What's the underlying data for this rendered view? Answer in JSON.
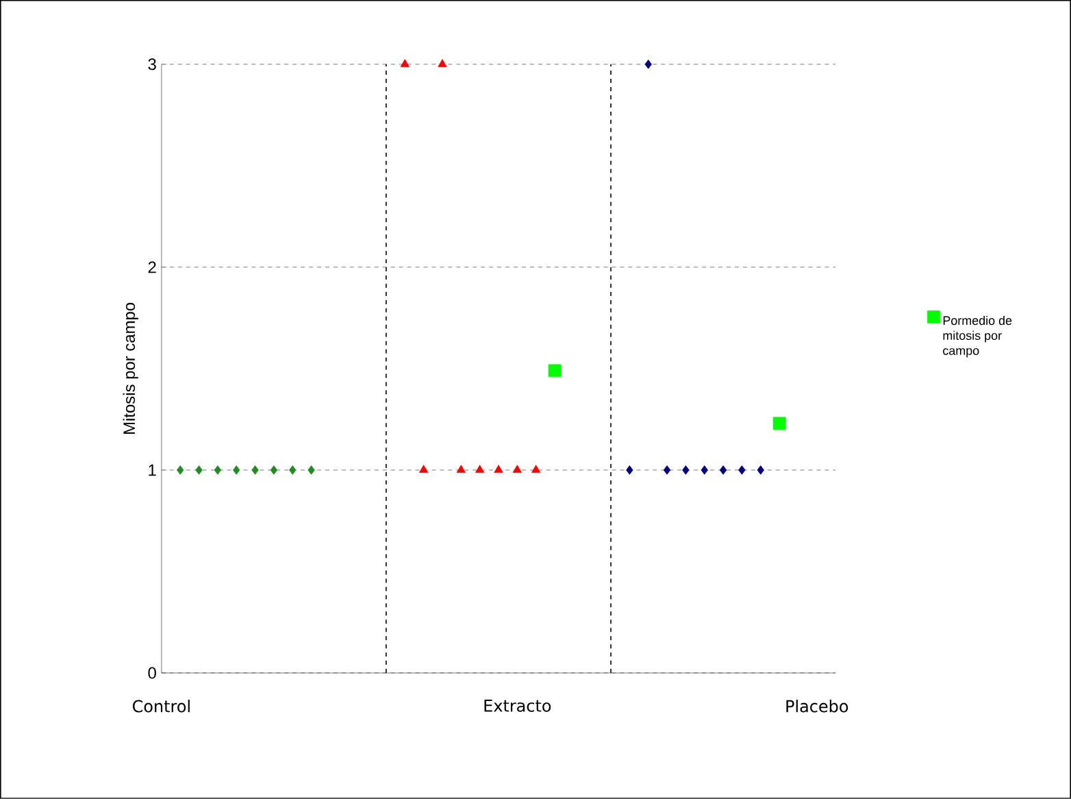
{
  "chart_data": {
    "type": "scatter",
    "ylabel": "Mitosis por campo",
    "categories": [
      "Control",
      null,
      null,
      null,
      null,
      null,
      null,
      null,
      null,
      null,
      null,
      null,
      null,
      null,
      null,
      null,
      null,
      null,
      null,
      "Extracto",
      null,
      null,
      null,
      null,
      null,
      null,
      null,
      null,
      null,
      null,
      null,
      null,
      null,
      null,
      null,
      "Placebo"
    ],
    "ylim": [
      0,
      3
    ],
    "yticks": [
      0,
      1,
      2,
      3
    ],
    "grid": true,
    "legend": "right",
    "series": [
      {
        "color": "#228b22",
        "marker": "diamond",
        "values": [
          null,
          1,
          1,
          1,
          1,
          1,
          1,
          1,
          1,
          null,
          null,
          null,
          null,
          null,
          null,
          null,
          null,
          null,
          null,
          null,
          null,
          null,
          null,
          null,
          null,
          null,
          null,
          null,
          null,
          null,
          null,
          null,
          null,
          null,
          null,
          null
        ]
      },
      {
        "color": "#ff0000",
        "marker": "triangle",
        "values": [
          null,
          null,
          null,
          null,
          null,
          null,
          null,
          null,
          null,
          null,
          null,
          null,
          null,
          3,
          1,
          3,
          1,
          1,
          1,
          1,
          1,
          null,
          null,
          null,
          null,
          null,
          null,
          null,
          null,
          null,
          null,
          null,
          null,
          null,
          null,
          null
        ]
      },
      {
        "color": "#000080",
        "marker": "diamond",
        "values": [
          null,
          null,
          null,
          null,
          null,
          null,
          null,
          null,
          null,
          null,
          null,
          null,
          null,
          null,
          null,
          null,
          null,
          null,
          null,
          null,
          null,
          null,
          null,
          null,
          null,
          1,
          3,
          1,
          1,
          1,
          1,
          1,
          1,
          null,
          null,
          null
        ]
      },
      {
        "name": "Pormedio de mitosis por campo",
        "color": "#00ff00",
        "marker": "square",
        "values": [
          null,
          null,
          null,
          null,
          null,
          null,
          null,
          null,
          null,
          null,
          null,
          null,
          null,
          null,
          null,
          null,
          null,
          null,
          null,
          null,
          null,
          1.49,
          null,
          null,
          null,
          null,
          null,
          null,
          null,
          null,
          null,
          null,
          null,
          1.23,
          null,
          null
        ]
      }
    ]
  }
}
